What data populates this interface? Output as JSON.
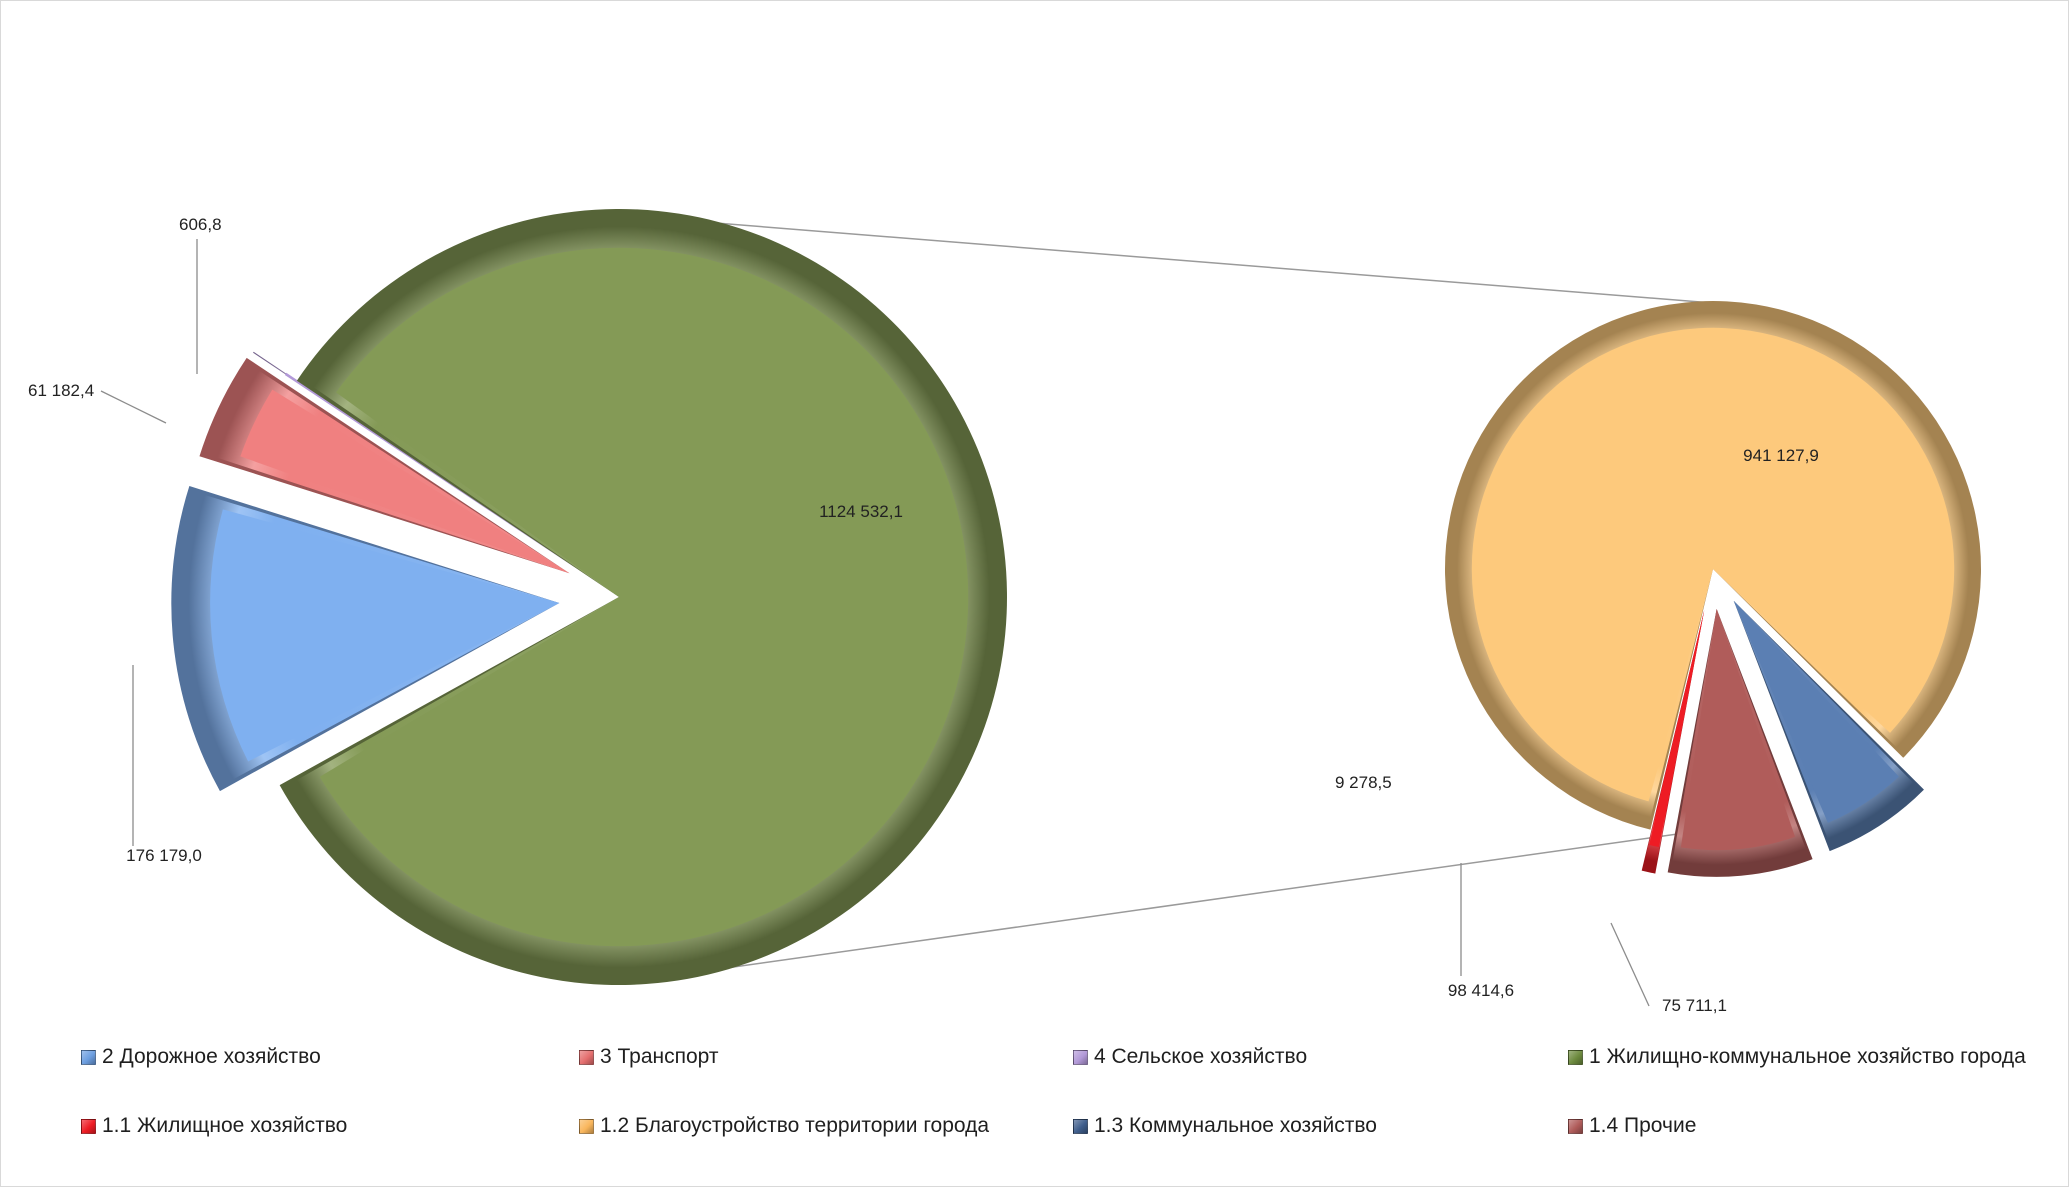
{
  "chart_data": {
    "type": "pie",
    "subtype": "pie-of-pie",
    "main_pie": {
      "slices": [
        {
          "name": "2 Дорожное хозяйство",
          "value": 176179.0,
          "label": "176 179,0",
          "color": "#7fb0f0"
        },
        {
          "name": "3 Транспорт",
          "value": 61182.4,
          "label": "61 182,4",
          "color": "#f08080"
        },
        {
          "name": "4 Сельское хозяйство",
          "value": 606.8,
          "label": "606,8",
          "color": "#b299d8"
        },
        {
          "name": "1 Жилищно-коммунальное  хозяйство города",
          "value": 1124532.1,
          "label": "1124 532,1",
          "color": "#849a56"
        }
      ]
    },
    "secondary_pie": {
      "slices": [
        {
          "name": "1.2 Благоустройство территории города",
          "value": 941127.9,
          "label": "941 127,9",
          "color": "#fdc97c"
        },
        {
          "name": "1.3 Коммунальное хозяйство",
          "value": 75711.1,
          "label": "75 711,1",
          "color": "#5b7fb3"
        },
        {
          "name": "1.4 Прочие",
          "value": 98414.6,
          "label": "98 414,6",
          "color": "#b05c5a"
        },
        {
          "name": "1.1 Жилищное хозяйство",
          "value": 9278.5,
          "label": "9 278,5",
          "color": "#ee1c24"
        }
      ]
    },
    "legend": {
      "position": "bottom",
      "items": [
        {
          "label": "2 Дорожное хозяйство",
          "color": "#6c9ee0"
        },
        {
          "label": "3 Транспорт",
          "color": "#e46e6e"
        },
        {
          "label": "4 Сельское хозяйство",
          "color": "#b299d8"
        },
        {
          "label": "1 Жилищно-коммунальное  хозяйство города",
          "color": "#6d8a3e"
        },
        {
          "label": "1.1 Жилищное хозяйство",
          "color": "#ee1c24"
        },
        {
          "label": "1.2 Благоустройство территории города",
          "color": "#f9b65c"
        },
        {
          "label": "1.3 Коммунальное хозяйство",
          "color": "#3f5e8c"
        },
        {
          "label": "1.4 Прочие",
          "color": "#b05c5a"
        }
      ]
    },
    "title": "",
    "grid": false
  }
}
